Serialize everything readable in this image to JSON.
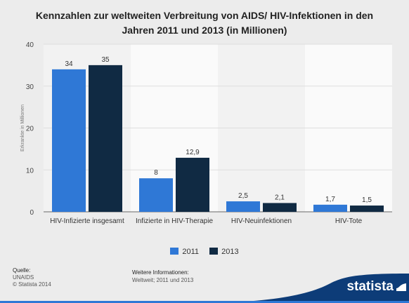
{
  "title_line1": "Kennzahlen zur weltweiten Verbreitung von AIDS/ HIV-Infektionen in den",
  "title_line2": "Jahren 2011 und 2013 (in Millionen)",
  "chart_data": {
    "type": "bar",
    "categories": [
      "HIV-Infizierte insgesamt",
      "Infizierte in HIV-Therapie",
      "HIV-Neuinfektionen",
      "HIV-Tote"
    ],
    "series": [
      {
        "name": "2011",
        "values": [
          34,
          8,
          2.5,
          1.7
        ],
        "labels": [
          "34",
          "8",
          "2,5",
          "1,7"
        ],
        "color": "#2f78d6"
      },
      {
        "name": "2013",
        "values": [
          35,
          12.9,
          2.1,
          1.5
        ],
        "labels": [
          "35",
          "12,9",
          "2,1",
          "1,5"
        ],
        "color": "#102a43"
      }
    ],
    "ylabel": "Erkrankte in Millionen",
    "ylim": [
      0,
      40
    ],
    "yticks": [
      0,
      10,
      20,
      30,
      40
    ],
    "grid": true,
    "legend": "bottom-center"
  },
  "footer": {
    "source_head": "Quelle:",
    "source_lines": [
      "UNAIDS",
      "© Statista 2014"
    ],
    "info_head": "Weitere Informationen:",
    "info_text": "Weltweit; 2011 und 2013"
  },
  "brand": "statista",
  "colors": {
    "bar_2011": "#2f78d6",
    "bar_2013": "#102a43",
    "brand_blue": "#0d3c78",
    "background": "#ececec"
  }
}
